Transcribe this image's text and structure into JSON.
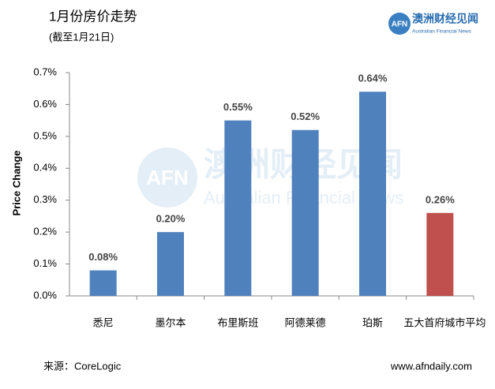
{
  "chart_data": {
    "type": "bar",
    "title": "1月份房价走势",
    "subtitle": "(截至1月21日)",
    "y_label": "Price Change",
    "source": "来源：CoreLogic",
    "website": "www.afndaily.com",
    "logo": {
      "mark": "AFN",
      "name": "澳洲财经见闻",
      "name_en": "Australian Financial News"
    },
    "categories": [
      "悉尼",
      "墨尔本",
      "布里斯班",
      "阿德莱德",
      "珀斯",
      "五大首府城市平均"
    ],
    "values": [
      0.08,
      0.2,
      0.55,
      0.52,
      0.64,
      0.26
    ],
    "value_labels": [
      "0.08%",
      "0.20%",
      "0.55%",
      "0.52%",
      "0.64%",
      "0.26%"
    ],
    "colors": [
      "#4f81bd",
      "#4f81bd",
      "#4f81bd",
      "#4f81bd",
      "#4f81bd",
      "#c0504d"
    ],
    "ylim": [
      0,
      0.7
    ],
    "yticks": [
      {
        "value": 0,
        "label": "0.0%"
      },
      {
        "value": 0.1,
        "label": "0.1%"
      },
      {
        "value": 0.2,
        "label": "0.2%"
      },
      {
        "value": 0.3,
        "label": "0.3%"
      },
      {
        "value": 0.4,
        "label": "0.4%"
      },
      {
        "value": 0.5,
        "label": "0.5%"
      },
      {
        "value": 0.6,
        "label": "0.6%"
      },
      {
        "value": 0.7,
        "label": "0.7%"
      }
    ],
    "grid": false
  }
}
